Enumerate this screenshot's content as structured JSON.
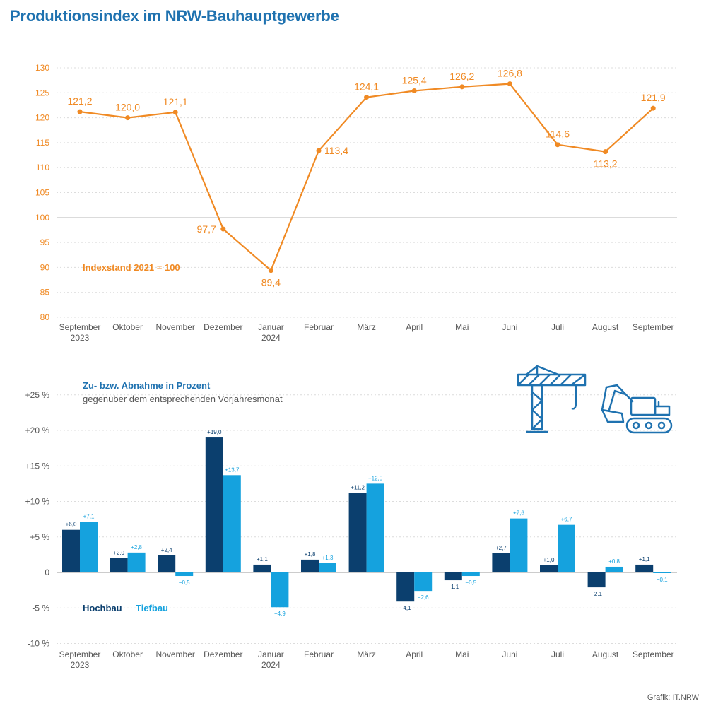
{
  "title": "Produktionsindex im NRW-Bauhauptgewerbe",
  "credit": "Grafik: IT.NRW",
  "colors": {
    "title": "#1f72b0",
    "line": "#f08a24",
    "hochbau": "#0b3f6e",
    "tiefbau": "#15a2de",
    "legend_heading": "#1f72b0",
    "axis_text": "#555555",
    "icon": "#1f72b0"
  },
  "icons": [
    "crane-icon",
    "excavator-icon"
  ],
  "chart_data": [
    {
      "type": "line",
      "annotation": "Indexstand 2021 = 100",
      "categories": [
        "September",
        "Oktober",
        "November",
        "Dezember",
        "Januar",
        "Februar",
        "März",
        "April",
        "Mai",
        "Juni",
        "Juli",
        "August",
        "September"
      ],
      "category_sublabels": [
        "2023",
        "",
        "",
        "",
        "2024",
        "",
        "",
        "",
        "",
        "",
        "",
        "",
        ""
      ],
      "yticks": [
        "130",
        "125",
        "120",
        "115",
        "110",
        "105",
        "100",
        "95",
        "90",
        "85",
        "80"
      ],
      "ylim": [
        80,
        130
      ],
      "grid": true,
      "values": [
        121.2,
        120.0,
        121.1,
        97.7,
        89.4,
        113.4,
        124.1,
        125.4,
        126.2,
        126.8,
        114.6,
        113.2,
        121.9
      ],
      "value_labels": [
        "121,2",
        "120,0",
        "121,1",
        "97,7",
        "89,4",
        "113,4",
        "124,1",
        "125,4",
        "126,2",
        "126,8",
        "114,6",
        "113,2",
        "121,9"
      ]
    },
    {
      "type": "bar",
      "heading": "Zu- bzw. Abnahme in Prozent",
      "subheading": "gegenüber dem entsprechenden Vorjahresmonat",
      "categories": [
        "September",
        "Oktober",
        "November",
        "Dezember",
        "Januar",
        "Februar",
        "März",
        "April",
        "Mai",
        "Juni",
        "Juli",
        "August",
        "September"
      ],
      "category_sublabels": [
        "2023",
        "",
        "",
        "",
        "2024",
        "",
        "",
        "",
        "",
        "",
        "",
        "",
        ""
      ],
      "yticks": [
        "+25 %",
        "+20 %",
        "+15 %",
        "+10 %",
        "+5 %",
        "0",
        "-5 %",
        "-10 %"
      ],
      "ylim": [
        -10,
        25
      ],
      "grid": true,
      "legend": "bottom-left",
      "series": [
        {
          "name": "Hochbau",
          "values": [
            6.0,
            2.0,
            2.4,
            19.0,
            1.1,
            1.8,
            11.2,
            -4.1,
            -1.1,
            2.7,
            1.0,
            -2.1,
            1.1
          ],
          "labels": [
            "+6,0",
            "+2,0",
            "+2,4",
            "+19,0",
            "+1,1",
            "+1,8",
            "+11,2",
            "−4,1",
            "−1,1",
            "+2,7",
            "+1,0",
            "−2,1",
            "+1,1"
          ]
        },
        {
          "name": "Tiefbau",
          "values": [
            7.1,
            2.8,
            -0.5,
            13.7,
            -4.9,
            1.3,
            12.5,
            -2.6,
            -0.5,
            7.6,
            6.7,
            0.8,
            -0.1
          ],
          "labels": [
            "+7,1",
            "+2,8",
            "−0,5",
            "+13,7",
            "−4,9",
            "+1,3",
            "+12,5",
            "−2,6",
            "−0,5",
            "+7,6",
            "+6,7",
            "+0,8",
            "−0,1"
          ]
        }
      ]
    }
  ]
}
